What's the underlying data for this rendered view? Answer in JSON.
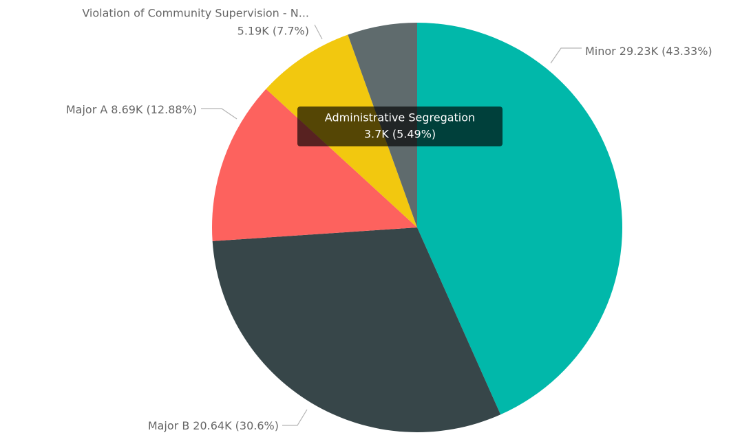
{
  "chart_data": {
    "type": "pie",
    "categories": [
      "Minor",
      "Major B",
      "Major A",
      "Violation of Community Supervision - N...",
      "Administrative Segregation"
    ],
    "values": [
      29230,
      20640,
      8690,
      5190,
      3700
    ],
    "value_labels": [
      "29.23K (43.33%)",
      "20.64K (30.6%)",
      "8.69K (12.88%)",
      "5.19K (7.7%)",
      "3.7K (5.49%)"
    ],
    "colors": [
      "#01B8AA",
      "#374649",
      "#FD625E",
      "#F2C80F",
      "#5F6B6D"
    ]
  }
}
